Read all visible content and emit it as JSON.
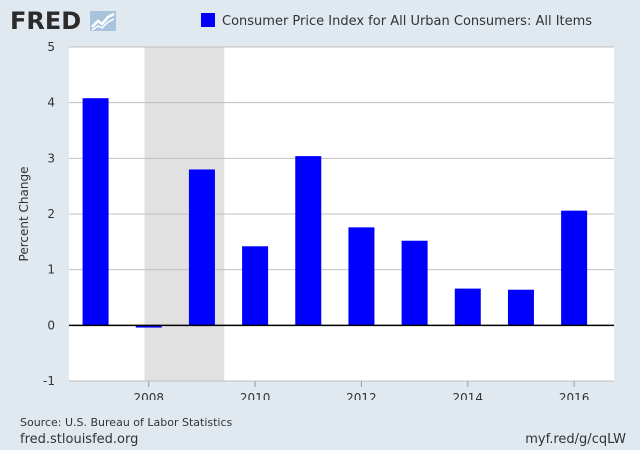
{
  "header": {
    "logo_text": "FRED"
  },
  "footer": {
    "source": "Source: U.S. Bureau of Labor Statistics",
    "site": "fred.stlouisfed.org",
    "shortlink": "myf.red/g/cqLW"
  },
  "colors": {
    "bar": "#0000ff",
    "background": "#e1e9f0",
    "plot": "#ffffff",
    "recession": "#e1e1e1",
    "grid": "#c0c0c0"
  },
  "chart_data": {
    "type": "bar",
    "categories": [
      "2007",
      "2008",
      "2009",
      "2010",
      "2011",
      "2012",
      "2013",
      "2014",
      "2015",
      "2016"
    ],
    "series": [
      {
        "name": "Consumer Price Index for All Urban Consumers: All Items",
        "values": [
          4.08,
          -0.04,
          2.8,
          1.42,
          3.04,
          1.76,
          1.52,
          0.66,
          0.64,
          2.06
        ]
      }
    ],
    "ylabel": "Percent Change",
    "ylim": [
      -1,
      5
    ],
    "yticks": [
      -1,
      0,
      1,
      2,
      3,
      4,
      5
    ],
    "xticks": [
      "2008",
      "2010",
      "2012",
      "2014",
      "2016"
    ],
    "recession_shading": {
      "start": 2007.92,
      "end": 2009.42
    },
    "grid": true,
    "legend_position": "top"
  }
}
